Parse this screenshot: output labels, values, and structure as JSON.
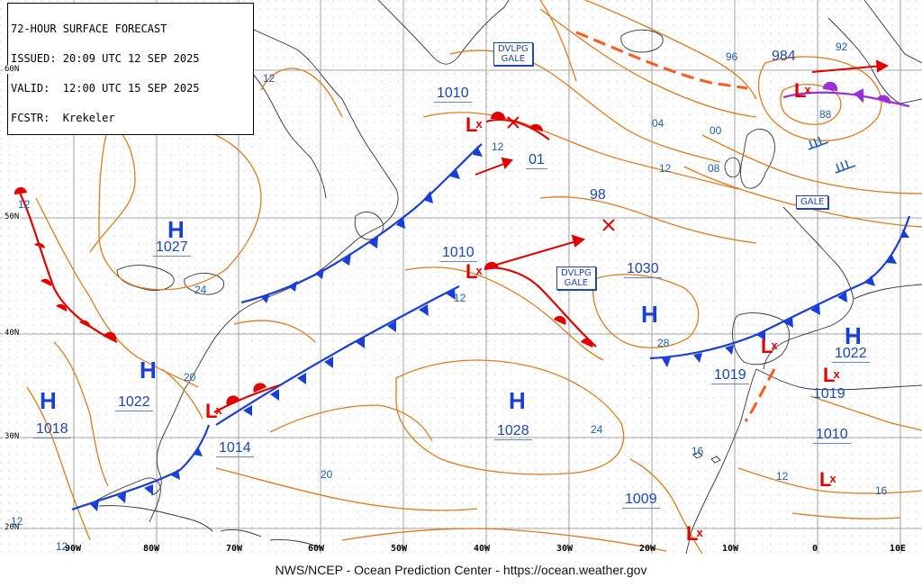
{
  "header": {
    "line1": "72-HOUR SURFACE FORECAST",
    "line2": "ISSUED: 20:09 UTC 12 SEP 2025",
    "line3": "VALID:  12:00 UTC 15 SEP 2025",
    "line4": "FCSTR:  Krekeler"
  },
  "footer": "NWS/NCEP - Ocean Prediction Center - https://ocean.weather.gov",
  "latitude_labels": [
    "60N",
    "50N",
    "40N",
    "30N",
    "20N"
  ],
  "longitude_labels": [
    "90W",
    "80W",
    "70W",
    "60W",
    "50W",
    "40W",
    "30W",
    "20W",
    "10W",
    "0",
    "10E"
  ],
  "pressure_centers": {
    "highs": [
      {
        "letter": "H",
        "value": "1027"
      },
      {
        "letter": "H",
        "value": "1022"
      },
      {
        "letter": "H",
        "value": "1018"
      },
      {
        "letter": "H",
        "value": "1030"
      },
      {
        "letter": "H",
        "value": "1028"
      },
      {
        "letter": "H",
        "value": "1022"
      }
    ],
    "lows": [
      {
        "value": "984"
      },
      {
        "value": "1010"
      },
      {
        "value": "1010"
      },
      {
        "value": "1014"
      },
      {
        "value": "1019"
      },
      {
        "value": "1019"
      },
      {
        "value": "1010"
      },
      {
        "value": "1009"
      },
      {
        "value": "01"
      },
      {
        "value": "98"
      }
    ]
  },
  "isobar_labels": [
    "12",
    "12",
    "12",
    "12",
    "12",
    "12",
    "12",
    "24",
    "20",
    "20",
    "24",
    "28",
    "16",
    "16",
    "96",
    "92",
    "88",
    "00",
    "04",
    "08"
  ],
  "warnings": [
    {
      "line1": "DVLPG",
      "line2": "GALE"
    },
    {
      "line1": "DVLPG",
      "line2": "GALE"
    },
    {
      "line1": "GALE",
      "line2": ""
    }
  ],
  "colors": {
    "isobar": "#e07a1e",
    "cold_front": "#1a3fd6",
    "warm_front": "#e00000",
    "occluded_front": "#9b30d9",
    "trough": "#ff5a1f",
    "pressure_text": "#1e46b4",
    "land_outline": "#333333",
    "grid": "#888888"
  },
  "legend_symbols": {
    "high": "H",
    "low": "L"
  }
}
